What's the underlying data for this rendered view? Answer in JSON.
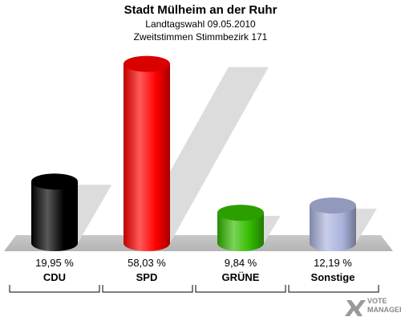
{
  "header": {
    "title": "Stadt Mülheim an der Ruhr",
    "subtitle1": "Landtagswahl 09.05.2010",
    "subtitle2": "Zweitstimmen Stimmbezirk 171"
  },
  "chart_data": {
    "type": "bar",
    "title": "Stadt Mülheim an der Ruhr",
    "subtitle": "Landtagswahl 09.05.2010 / Zweitstimmen Stimmbezirk 171",
    "categories": [
      "CDU",
      "SPD",
      "GRÜNE",
      "Sonstige"
    ],
    "values": [
      19.95,
      58.03,
      9.84,
      12.19
    ],
    "value_labels": [
      "19,95 %",
      "58,03 %",
      "9,84 %",
      "12,19 %"
    ],
    "colors": [
      "#000000",
      "#ff0000",
      "#33bb00",
      "#aab4dd"
    ],
    "ylim": [
      0,
      60
    ],
    "grid": false,
    "legend": "none"
  },
  "branding": {
    "logo_line1": "VOTE",
    "logo_line2": "MANAGER"
  }
}
